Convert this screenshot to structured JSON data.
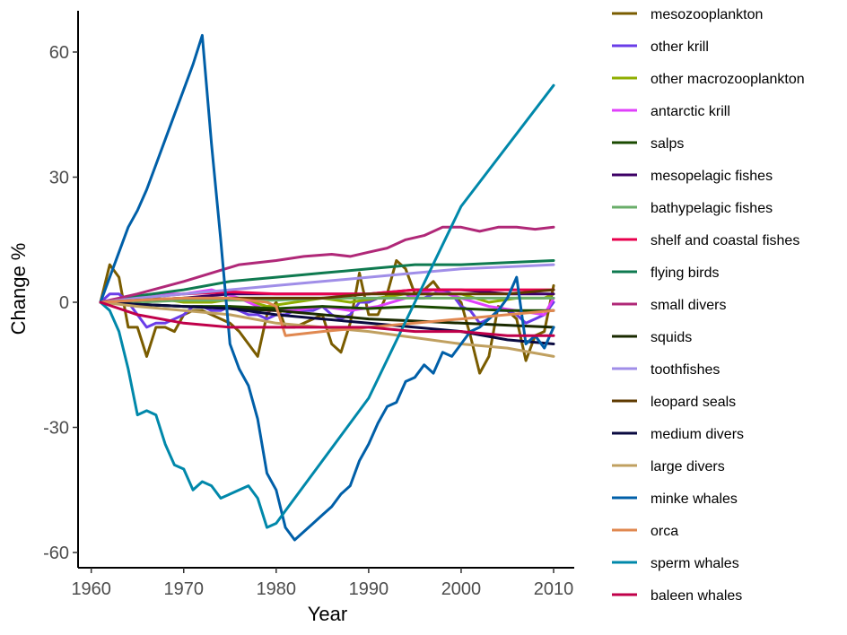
{
  "chart_data": {
    "type": "line",
    "xlabel": "Year",
    "ylabel": "Change %",
    "xlim": [
      1958,
      2012
    ],
    "ylim": [
      -63,
      70
    ],
    "xticks": [
      "1960",
      "1970",
      "1980",
      "1990",
      "2000",
      "2010"
    ],
    "yticks": [
      "60",
      "30",
      "0",
      "-30",
      "-60"
    ],
    "grid": false,
    "legend_position": "right",
    "series": [
      {
        "name": "mesozooplankton",
        "color": "#7a5c00",
        "x": [
          1961,
          1962,
          1963,
          1964,
          1965,
          1966,
          1967,
          1968,
          1969,
          1970,
          1971,
          1972,
          1973,
          1974,
          1975,
          1976,
          1977,
          1978,
          1979,
          1980,
          1981,
          1982,
          1983,
          1984,
          1985,
          1986,
          1987,
          1988,
          1989,
          1990,
          1991,
          1992,
          1993,
          1994,
          1995,
          1996,
          1997,
          1998,
          1999,
          2000,
          2001,
          2002,
          2003,
          2004,
          2005,
          2006,
          2007,
          2008,
          2009,
          2010
        ],
        "y": [
          0,
          9,
          6,
          -6,
          -6,
          -13,
          -6,
          -6,
          -7,
          -3,
          -2,
          -2,
          -3,
          -4,
          -5,
          -7,
          -10,
          -13,
          -3,
          0,
          -6,
          -6,
          -5,
          -4,
          -3,
          -10,
          -12,
          -5,
          7,
          -3,
          -3,
          2,
          10,
          8,
          2,
          3,
          5,
          2,
          2,
          0,
          -8,
          -17,
          -13,
          -1,
          -2,
          -4,
          -14,
          -8,
          -7,
          4
        ]
      },
      {
        "name": "other krill",
        "color": "#6a3de8",
        "x": [
          1961,
          1962,
          1963,
          1964,
          1965,
          1966,
          1967,
          1968,
          1969,
          1970,
          1971,
          1972,
          1973,
          1974,
          1975,
          1976,
          1977,
          1978,
          1979,
          1980,
          1981,
          1982,
          1983,
          1984,
          1985,
          1986,
          1987,
          1988,
          1989,
          1990,
          1991,
          1992,
          1993,
          1994,
          1995,
          1996,
          1997,
          1998,
          1999,
          2000,
          2001,
          2002,
          2003,
          2004,
          2005,
          2006,
          2007,
          2008,
          2009,
          2010
        ],
        "y": [
          0,
          2,
          2,
          0,
          -3,
          -6,
          -5,
          -5,
          -4,
          -3,
          -1,
          -1,
          -2,
          -2,
          -1,
          -2,
          -3,
          -3,
          -4,
          -3,
          -3,
          -2,
          -2,
          -2,
          -1,
          -3,
          -4,
          -3,
          0,
          0,
          1,
          1,
          2,
          2,
          1,
          1,
          2,
          3,
          2,
          -1,
          -2,
          -5,
          -4,
          -2,
          -2,
          -3,
          -5,
          -4,
          -3,
          0
        ]
      },
      {
        "name": "other macrozooplankton",
        "color": "#8fae00",
        "x": [
          1961,
          1964,
          1967,
          1970,
          1973,
          1976,
          1979,
          1982,
          1985,
          1988,
          1991,
          1994,
          1997,
          2000,
          2003,
          2006,
          2009,
          2010
        ],
        "y": [
          0,
          0,
          1,
          0,
          0,
          1,
          -1,
          0,
          1,
          0,
          1,
          2,
          2,
          2,
          0,
          1,
          1,
          2
        ]
      },
      {
        "name": "antarctic krill",
        "color": "#e040fb",
        "x": [
          1961,
          1964,
          1967,
          1970,
          1973,
          1976,
          1979,
          1982,
          1985,
          1988,
          1991,
          1994,
          1997,
          2000,
          2003,
          2006,
          2009,
          2010
        ],
        "y": [
          0,
          1,
          2,
          2,
          3,
          1,
          -2,
          -2,
          -1,
          -2,
          -1,
          1,
          3,
          1,
          -1,
          -2,
          -3,
          1
        ]
      },
      {
        "name": "salps",
        "color": "#1a4a00",
        "x": [
          1961,
          1965,
          1970,
          1975,
          1980,
          1985,
          1990,
          1995,
          2000,
          2005,
          2010
        ],
        "y": [
          0,
          -0.5,
          -1,
          -1,
          -1.5,
          -1,
          -1.5,
          -1,
          -1.5,
          -2,
          -2
        ]
      },
      {
        "name": "mesopelagic fishes",
        "color": "#3d0066",
        "x": [
          1961,
          1965,
          1970,
          1975,
          1980,
          1985,
          1990,
          1995,
          2000,
          2005,
          2010
        ],
        "y": [
          0,
          0.5,
          1,
          2,
          2,
          2,
          2,
          3,
          3,
          2,
          2
        ]
      },
      {
        "name": "bathypelagic fishes",
        "color": "#6aae6a",
        "x": [
          1961,
          1965,
          1970,
          1975,
          1980,
          1985,
          1990,
          1995,
          2000,
          2005,
          2010
        ],
        "y": [
          0,
          0,
          0.5,
          0.5,
          0.5,
          1,
          1,
          1,
          1,
          1,
          1
        ]
      },
      {
        "name": "shelf and coastal fishes",
        "color": "#e8004d",
        "x": [
          1961,
          1965,
          1970,
          1975,
          1980,
          1985,
          1990,
          1995,
          2000,
          2005,
          2010
        ],
        "y": [
          0,
          1,
          2,
          2.5,
          2,
          2,
          2,
          3,
          3,
          3,
          3
        ]
      },
      {
        "name": "flying birds",
        "color": "#0f7a50",
        "x": [
          1961,
          1965,
          1970,
          1975,
          1980,
          1985,
          1990,
          1995,
          2000,
          2005,
          2010
        ],
        "y": [
          0,
          1.5,
          3,
          5,
          6,
          7,
          8,
          9,
          9,
          9.5,
          10
        ]
      },
      {
        "name": "small divers",
        "color": "#b02878",
        "x": [
          1961,
          1965,
          1970,
          1973,
          1976,
          1980,
          1983,
          1986,
          1988,
          1990,
          1992,
          1994,
          1996,
          1998,
          2000,
          2002,
          2004,
          2006,
          2008,
          2010
        ],
        "y": [
          0,
          2,
          5,
          7,
          9,
          10,
          11,
          11.5,
          11,
          12,
          13,
          15,
          16,
          18,
          18,
          17,
          18,
          18,
          17.5,
          18
        ]
      },
      {
        "name": "squids",
        "color": "#1a2a00",
        "x": [
          1961,
          1965,
          1970,
          1975,
          1980,
          1985,
          1990,
          1995,
          2000,
          2005,
          2010
        ],
        "y": [
          0,
          -0.5,
          -1,
          -1.5,
          -2,
          -3,
          -4,
          -4.5,
          -5,
          -5.5,
          -6
        ]
      },
      {
        "name": "toothfishes",
        "color": "#a08ee8",
        "x": [
          1961,
          1965,
          1970,
          1975,
          1980,
          1985,
          1990,
          1995,
          2000,
          2005,
          2010
        ],
        "y": [
          0,
          1,
          2,
          3,
          4,
          5,
          6,
          7,
          8,
          8.5,
          9
        ]
      },
      {
        "name": "leopard seals",
        "color": "#5e3a00",
        "x": [
          1961,
          1965,
          1970,
          1975,
          1980,
          1985,
          1990,
          1995,
          2000,
          2005,
          2010
        ],
        "y": [
          0,
          0.5,
          1,
          1,
          1,
          1,
          2,
          2,
          2,
          2,
          3
        ]
      },
      {
        "name": "medium divers",
        "color": "#0a0a40",
        "x": [
          1961,
          1965,
          1970,
          1975,
          1980,
          1985,
          1990,
          1995,
          2000,
          2005,
          2010
        ],
        "y": [
          0,
          -0.5,
          -1,
          -1.5,
          -3,
          -4,
          -5,
          -6,
          -7,
          -9,
          -10
        ]
      },
      {
        "name": "large divers",
        "color": "#c0a060",
        "x": [
          1961,
          1965,
          1970,
          1975,
          1980,
          1985,
          1990,
          1995,
          2000,
          2005,
          2010
        ],
        "y": [
          0,
          -1,
          -2,
          -3,
          -5,
          -6,
          -7,
          -8.5,
          -10,
          -11,
          -13
        ]
      },
      {
        "name": "minke whales",
        "color": "#005fa8",
        "x": [
          1961,
          1962,
          1963,
          1964,
          1965,
          1966,
          1967,
          1968,
          1969,
          1970,
          1971,
          1972,
          1973,
          1974,
          1975,
          1976,
          1977,
          1978,
          1979,
          1980,
          1981,
          1982,
          1983,
          1984,
          1985,
          1986,
          1987,
          1988,
          1989,
          1990,
          1991,
          1992,
          1993,
          1994,
          1995,
          1996,
          1997,
          1998,
          1999,
          2000,
          2001,
          2002,
          2003,
          2004,
          2005,
          2006,
          2007,
          2008,
          2009,
          2010
        ],
        "y": [
          0,
          6,
          12,
          18,
          22,
          27,
          33,
          39,
          45,
          51,
          57,
          64,
          38,
          15,
          -10,
          -16,
          -20,
          -28,
          -41,
          -45,
          -54,
          -57,
          -55,
          -53,
          -51,
          -49,
          -46,
          -44,
          -38,
          -34,
          -29,
          -25,
          -24,
          -19,
          -18,
          -15,
          -17,
          -12,
          -13,
          -10,
          -7,
          -6,
          -4,
          -2,
          1,
          6,
          -10,
          -8,
          -11,
          -6
        ]
      },
      {
        "name": "orca",
        "color": "#e08850",
        "x": [
          1961,
          1965,
          1970,
          1975,
          1979,
          1980,
          1981,
          1985,
          1990,
          1995,
          2000,
          2005,
          2010
        ],
        "y": [
          0,
          0.5,
          1,
          1,
          0,
          -1,
          -8,
          -7,
          -6,
          -5,
          -4,
          -3,
          -2
        ]
      },
      {
        "name": "sperm whales",
        "color": "#0088aa",
        "x": [
          1961,
          1962,
          1963,
          1964,
          1965,
          1966,
          1967,
          1968,
          1969,
          1970,
          1971,
          1972,
          1973,
          1974,
          1975,
          1976,
          1977,
          1978,
          1979,
          1980,
          1981,
          1990,
          2000,
          2010
        ],
        "y": [
          0,
          -2,
          -7,
          -16,
          -27,
          -26,
          -27,
          -34,
          -39,
          -40,
          -45,
          -43,
          -44,
          -47,
          -46,
          -45,
          -44,
          -47,
          -54,
          -53,
          -50,
          -23,
          23,
          52
        ]
      },
      {
        "name": "baleen whales",
        "color": "#c0004a",
        "x": [
          1961,
          1965,
          1970,
          1975,
          1980,
          1985,
          1990,
          1995,
          2000,
          2005,
          2010
        ],
        "y": [
          0,
          -3,
          -5,
          -6,
          -6,
          -6,
          -6,
          -7,
          -7,
          -8,
          -8
        ]
      }
    ]
  }
}
